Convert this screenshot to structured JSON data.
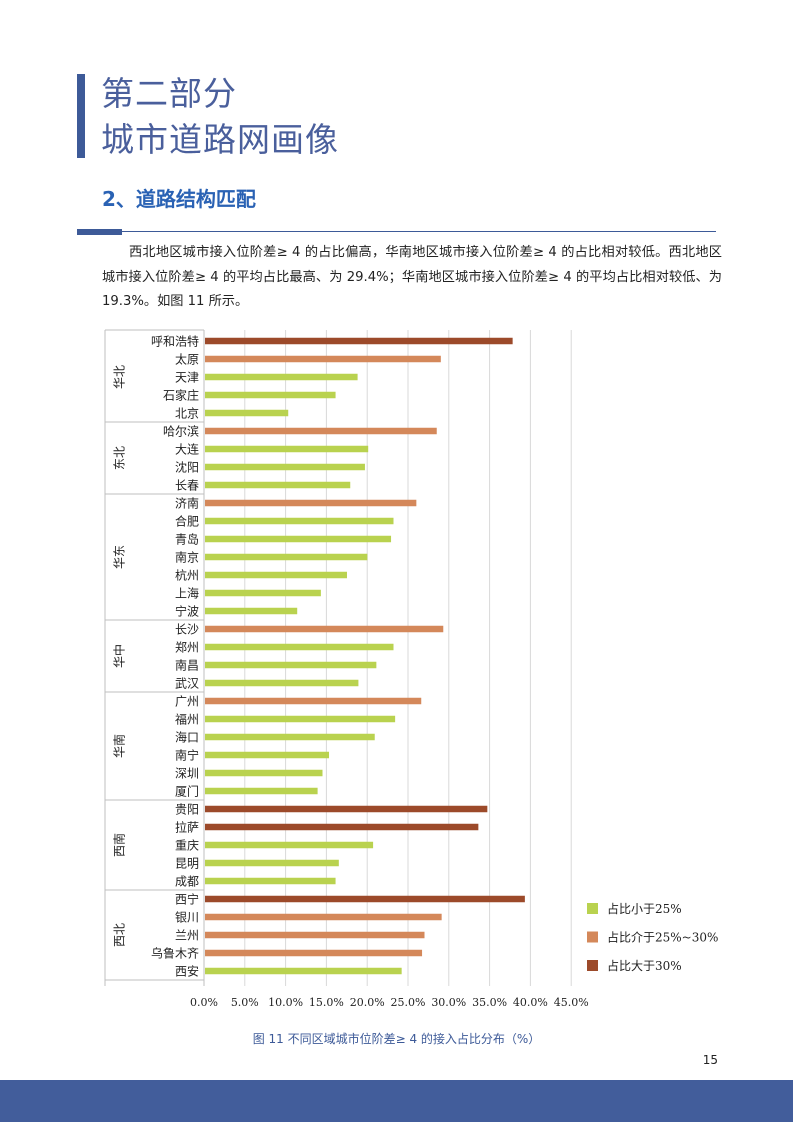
{
  "heading": {
    "line1": "第二部分",
    "line2": "城市道路网画像"
  },
  "section_title": "2、道路结构匹配",
  "paragraph": "西北地区城市接入位阶差≥ 4 的占比偏高，华南地区城市接入位阶差≥ 4 的占比相对较低。西北地区城市接入位阶差≥ 4 的平均占比最高、为 29.4%；华南地区城市接入位阶差≥ 4 的平均占比相对较低、为 19.3%。如图 11 所示。",
  "caption": "图 11 不同区域城市位阶差≥ 4 的接入占比分布（%）",
  "page_number": "15",
  "colors": {
    "low": "#b9d24f",
    "mid": "#d4885a",
    "high": "#9c4a2a",
    "accent": "#3d5a98"
  },
  "chart_data": {
    "type": "bar",
    "orientation": "horizontal",
    "title": "",
    "xlim": [
      0,
      45
    ],
    "x_ticks": [
      "0.0%",
      "5.0%",
      "10.0%",
      "15.0%",
      "20.0%",
      "25.0%",
      "30.0%",
      "35.0%",
      "40.0%",
      "45.0%"
    ],
    "legend": [
      {
        "label": "占比小于25%",
        "cls": "low"
      },
      {
        "label": "占比介于25%~30%",
        "cls": "mid"
      },
      {
        "label": "占比大于30%",
        "cls": "high"
      }
    ],
    "groups": [
      {
        "region": "华北",
        "cities": [
          {
            "name": "呼和浩特",
            "value": 37.7,
            "cls": "high"
          },
          {
            "name": "太原",
            "value": 28.9,
            "cls": "mid"
          },
          {
            "name": "天津",
            "value": 18.7,
            "cls": "low"
          },
          {
            "name": "石家庄",
            "value": 16.0,
            "cls": "low"
          },
          {
            "name": "北京",
            "value": 10.2,
            "cls": "low"
          }
        ]
      },
      {
        "region": "东北",
        "cities": [
          {
            "name": "哈尔滨",
            "value": 28.4,
            "cls": "mid"
          },
          {
            "name": "大连",
            "value": 20.0,
            "cls": "low"
          },
          {
            "name": "沈阳",
            "value": 19.6,
            "cls": "low"
          },
          {
            "name": "长春",
            "value": 17.8,
            "cls": "low"
          }
        ]
      },
      {
        "region": "华东",
        "cities": [
          {
            "name": "济南",
            "value": 25.9,
            "cls": "mid"
          },
          {
            "name": "合肥",
            "value": 23.1,
            "cls": "low"
          },
          {
            "name": "青岛",
            "value": 22.8,
            "cls": "low"
          },
          {
            "name": "南京",
            "value": 19.9,
            "cls": "low"
          },
          {
            "name": "杭州",
            "value": 17.4,
            "cls": "low"
          },
          {
            "name": "上海",
            "value": 14.2,
            "cls": "low"
          },
          {
            "name": "宁波",
            "value": 11.3,
            "cls": "low"
          }
        ]
      },
      {
        "region": "华中",
        "cities": [
          {
            "name": "长沙",
            "value": 29.2,
            "cls": "mid"
          },
          {
            "name": "郑州",
            "value": 23.1,
            "cls": "low"
          },
          {
            "name": "南昌",
            "value": 21.0,
            "cls": "low"
          },
          {
            "name": "武汉",
            "value": 18.8,
            "cls": "low"
          }
        ]
      },
      {
        "region": "华南",
        "cities": [
          {
            "name": "广州",
            "value": 26.5,
            "cls": "mid"
          },
          {
            "name": "福州",
            "value": 23.3,
            "cls": "low"
          },
          {
            "name": "海口",
            "value": 20.8,
            "cls": "low"
          },
          {
            "name": "南宁",
            "value": 15.2,
            "cls": "low"
          },
          {
            "name": "深圳",
            "value": 14.4,
            "cls": "low"
          },
          {
            "name": "厦门",
            "value": 13.8,
            "cls": "low"
          }
        ]
      },
      {
        "region": "西南",
        "cities": [
          {
            "name": "贵阳",
            "value": 34.6,
            "cls": "high"
          },
          {
            "name": "拉萨",
            "value": 33.5,
            "cls": "high"
          },
          {
            "name": "重庆",
            "value": 20.6,
            "cls": "low"
          },
          {
            "name": "昆明",
            "value": 16.4,
            "cls": "low"
          },
          {
            "name": "成都",
            "value": 16.0,
            "cls": "low"
          }
        ]
      },
      {
        "region": "西北",
        "cities": [
          {
            "name": "西宁",
            "value": 39.2,
            "cls": "high"
          },
          {
            "name": "银川",
            "value": 29.0,
            "cls": "mid"
          },
          {
            "name": "兰州",
            "value": 26.9,
            "cls": "mid"
          },
          {
            "name": "乌鲁木齐",
            "value": 26.6,
            "cls": "mid"
          },
          {
            "name": "西安",
            "value": 24.1,
            "cls": "low"
          }
        ]
      }
    ]
  }
}
